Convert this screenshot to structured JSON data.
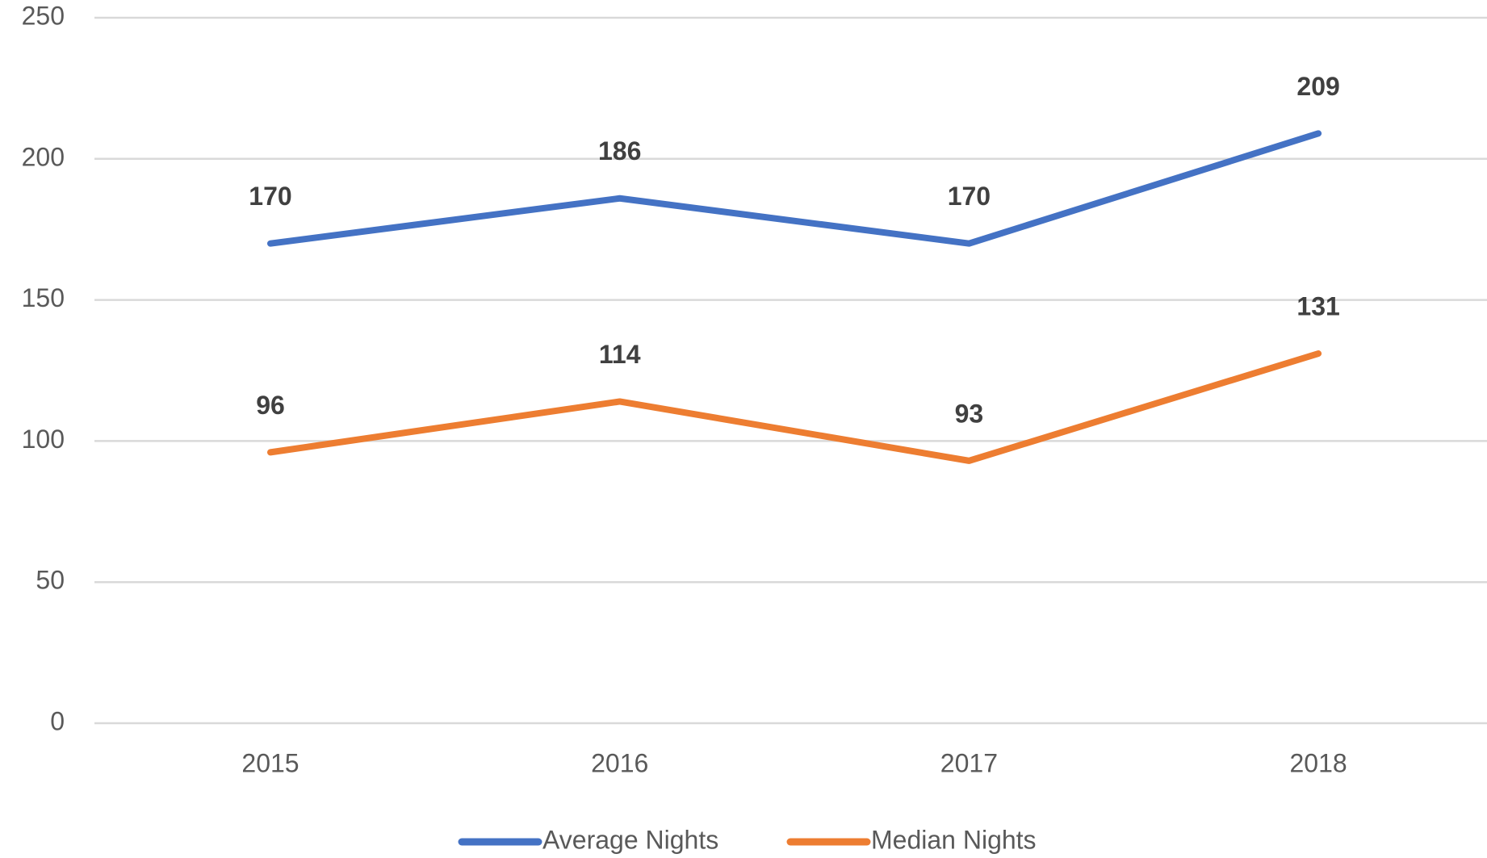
{
  "chart_data": {
    "type": "line",
    "categories": [
      "2015",
      "2016",
      "2017",
      "2018"
    ],
    "series": [
      {
        "name": "Average Nights",
        "color": "#4472c4",
        "values": [
          170,
          186,
          170,
          209
        ]
      },
      {
        "name": "Median Nights",
        "color": "#ed7d31",
        "values": [
          96,
          114,
          93,
          131
        ]
      }
    ],
    "ylim": [
      0,
      250
    ],
    "yticks": [
      0,
      50,
      100,
      150,
      200,
      250
    ],
    "grid": true,
    "legend": "bottom"
  }
}
